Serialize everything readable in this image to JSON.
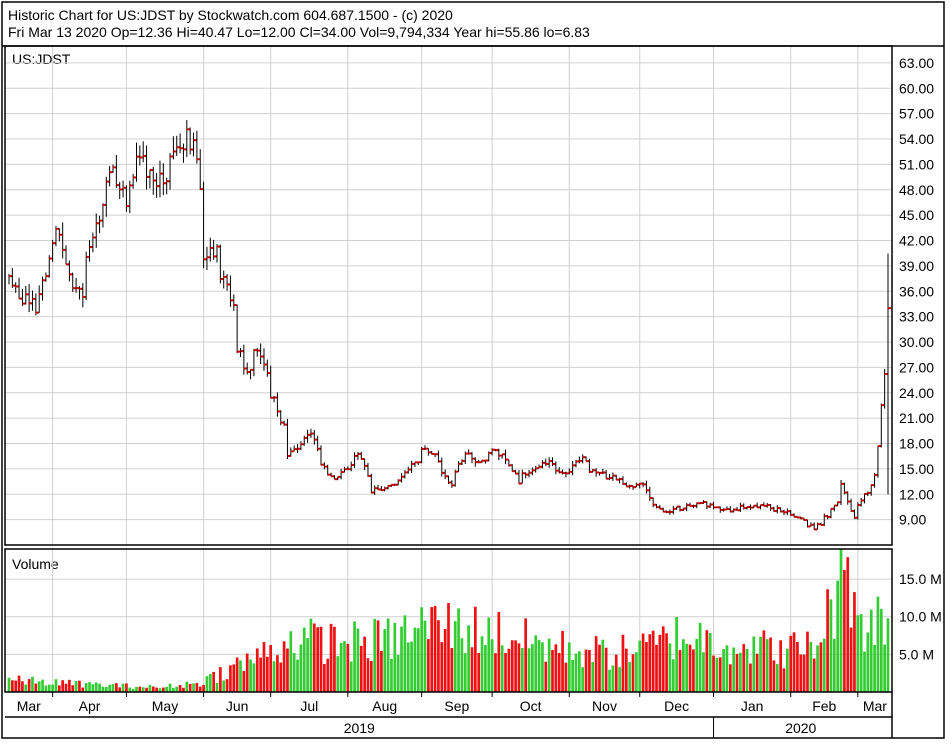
{
  "header": {
    "line1": "Historic Chart for US:JDST by Stockwatch.com 604.687.1500 - (c) 2020",
    "line2": "Fri Mar 13 2020   Op=12.36   Hi=40.47   Lo=12.00   Cl=34.00   Vol=9,794,334   Year hi=55.86   lo=6.83"
  },
  "chart_data": [
    {
      "type": "ohlc",
      "title": "US:JDST",
      "ylim": [
        6,
        65
      ],
      "yticks": [
        9,
        12,
        15,
        18,
        21,
        24,
        27,
        30,
        33,
        36,
        39,
        42,
        45,
        48,
        51,
        54,
        57,
        60,
        63
      ],
      "ytick_labels": [
        "9.00",
        "12.00",
        "15.00",
        "18.00",
        "21.00",
        "24.00",
        "27.00",
        "30.00",
        "33.00",
        "36.00",
        "39.00",
        "42.00",
        "45.00",
        "48.00",
        "51.00",
        "54.00",
        "57.00",
        "60.00",
        "63.00"
      ],
      "grid": true,
      "close_anchors": [
        [
          "2019-03-13",
          37.5
        ],
        [
          "2019-03-20",
          35.0
        ],
        [
          "2019-03-25",
          33.5
        ],
        [
          "2019-03-29",
          39.5
        ],
        [
          "2019-04-02",
          42.5
        ],
        [
          "2019-04-08",
          37.5
        ],
        [
          "2019-04-12",
          36.0
        ],
        [
          "2019-04-18",
          43.5
        ],
        [
          "2019-04-25",
          50.0
        ],
        [
          "2019-05-01",
          46.5
        ],
        [
          "2019-05-06",
          53.0
        ],
        [
          "2019-05-10",
          50.0
        ],
        [
          "2019-05-15",
          49.0
        ],
        [
          "2019-05-20",
          52.0
        ],
        [
          "2019-05-27",
          55.0
        ],
        [
          "2019-05-30",
          51.5
        ],
        [
          "2019-06-03",
          39.0
        ],
        [
          "2019-06-07",
          41.5
        ],
        [
          "2019-06-11",
          37.0
        ],
        [
          "2019-06-14",
          34.5
        ],
        [
          "2019-06-17",
          29.5
        ],
        [
          "2019-06-20",
          26.0
        ],
        [
          "2019-06-25",
          29.0
        ],
        [
          "2019-06-28",
          27.0
        ],
        [
          "2019-07-03",
          22.0
        ],
        [
          "2019-07-08",
          16.5
        ],
        [
          "2019-07-12",
          17.5
        ],
        [
          "2019-07-17",
          19.0
        ],
        [
          "2019-07-22",
          15.5
        ],
        [
          "2019-07-26",
          13.5
        ],
        [
          "2019-08-01",
          15.0
        ],
        [
          "2019-08-06",
          16.5
        ],
        [
          "2019-08-12",
          12.5
        ],
        [
          "2019-08-19",
          13.0
        ],
        [
          "2019-08-26",
          14.5
        ],
        [
          "2019-09-03",
          17.5
        ],
        [
          "2019-09-09",
          15.5
        ],
        [
          "2019-09-13",
          13.0
        ],
        [
          "2019-09-19",
          17.0
        ],
        [
          "2019-09-25",
          16.0
        ],
        [
          "2019-10-01",
          17.0
        ],
        [
          "2019-10-07",
          16.0
        ],
        [
          "2019-10-11",
          13.5
        ],
        [
          "2019-10-17",
          15.0
        ],
        [
          "2019-10-24",
          16.0
        ],
        [
          "2019-10-30",
          14.5
        ],
        [
          "2019-11-07",
          16.0
        ],
        [
          "2019-11-13",
          14.5
        ],
        [
          "2019-11-20",
          14.0
        ],
        [
          "2019-11-26",
          13.0
        ],
        [
          "2019-12-03",
          13.5
        ],
        [
          "2019-12-06",
          10.5
        ],
        [
          "2019-12-12",
          10.0
        ],
        [
          "2019-12-20",
          10.5
        ],
        [
          "2019-12-27",
          11.0
        ],
        [
          "2020-01-07",
          10.0
        ],
        [
          "2020-01-14",
          10.5
        ],
        [
          "2020-01-24",
          10.5
        ],
        [
          "2020-01-31",
          10.0
        ],
        [
          "2020-02-07",
          9.0
        ],
        [
          "2020-02-12",
          8.0
        ],
        [
          "2020-02-18",
          9.5
        ],
        [
          "2020-02-24",
          13.0
        ],
        [
          "2020-02-28",
          9.0
        ],
        [
          "2020-03-04",
          12.0
        ],
        [
          "2020-03-09",
          14.0
        ],
        [
          "2020-03-12",
          26.0
        ],
        [
          "2020-03-13",
          34.0
        ]
      ]
    },
    {
      "type": "bar",
      "title": "Volume",
      "ylim": [
        0,
        19000000
      ],
      "yticks": [
        5000000,
        10000000,
        15000000
      ],
      "ytick_labels": [
        "5.0 M",
        "10.0 M",
        "15.0 M"
      ],
      "up_color": "#33cc33",
      "down_color": "#ee1111",
      "volume_anchors_millions": [
        [
          "2019-03-13",
          1.6
        ],
        [
          "2019-04-10",
          1.1
        ],
        [
          "2019-05-15",
          0.6
        ],
        [
          "2019-05-31",
          1.2
        ],
        [
          "2019-06-20",
          4.0
        ],
        [
          "2019-07-10",
          7.0
        ],
        [
          "2019-08-01",
          6.5
        ],
        [
          "2019-08-20",
          7.0
        ],
        [
          "2019-09-05",
          9.0
        ],
        [
          "2019-09-30",
          8.0
        ],
        [
          "2019-10-25",
          6.0
        ],
        [
          "2019-11-20",
          5.0
        ],
        [
          "2019-12-05",
          6.0
        ],
        [
          "2019-12-18",
          7.5
        ],
        [
          "2020-01-08",
          6.5
        ],
        [
          "2020-01-29",
          5.5
        ],
        [
          "2020-02-12",
          6.0
        ],
        [
          "2020-02-19",
          11.0
        ],
        [
          "2020-02-26",
          16.0
        ],
        [
          "2020-03-04",
          9.0
        ],
        [
          "2020-03-13",
          9.8
        ]
      ],
      "last_volume": 9794334
    }
  ],
  "x_axis": {
    "start": "2019-03-13",
    "end": "2020-03-13",
    "months": [
      {
        "label": "Mar",
        "date": "2019-03-01"
      },
      {
        "label": "Apr",
        "date": "2019-04-01"
      },
      {
        "label": "May",
        "date": "2019-05-01"
      },
      {
        "label": "Jun",
        "date": "2019-06-01"
      },
      {
        "label": "Jul",
        "date": "2019-07-01"
      },
      {
        "label": "Aug",
        "date": "2019-08-01"
      },
      {
        "label": "Sep",
        "date": "2019-09-01"
      },
      {
        "label": "Oct",
        "date": "2019-10-01"
      },
      {
        "label": "Nov",
        "date": "2019-11-01"
      },
      {
        "label": "Dec",
        "date": "2019-12-01"
      },
      {
        "label": "Jan",
        "date": "2020-01-01"
      },
      {
        "label": "Feb",
        "date": "2020-02-01"
      },
      {
        "label": "Mar",
        "date": "2020-03-01"
      }
    ],
    "years": [
      {
        "label": "2019",
        "start": "2019-03-01",
        "end": "2020-01-01"
      },
      {
        "label": "2020",
        "start": "2020-01-01",
        "end": "2020-03-13"
      }
    ]
  },
  "colors": {
    "grid": "#d0d0d0",
    "frame": "#000000",
    "bar_line": "#000000",
    "close_tick": "#cc0000"
  }
}
